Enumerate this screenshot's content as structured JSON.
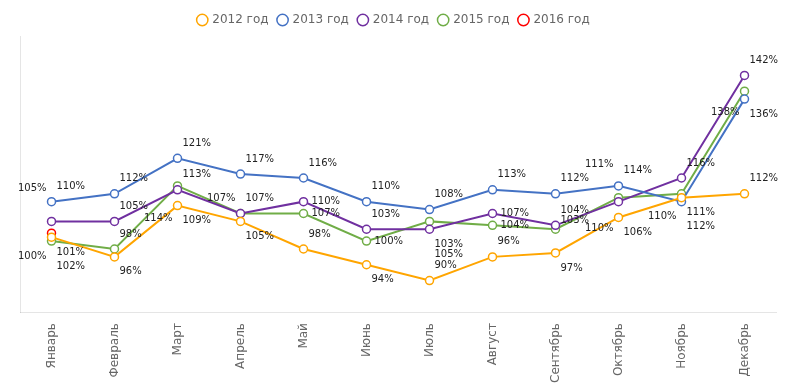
{
  "chart_data": {
    "type": "line",
    "categories": [
      "Январь",
      "Февраль",
      "Март",
      "Апрель",
      "Май",
      "Июнь",
      "Июль",
      "Август",
      "Сентябрь",
      "Октябрь",
      "Ноябрь",
      "Декабрь"
    ],
    "series": [
      {
        "name": "2012 год",
        "color": "#FFA500",
        "values": [
          101,
          96,
          109,
          105,
          98,
          94,
          90,
          96,
          97,
          106,
          111,
          112
        ],
        "value_labels": [
          "101%",
          "96%",
          "109%",
          "105%",
          "98%",
          "94%",
          "90%",
          "96%",
          "97%",
          "106%",
          "111%",
          "112%"
        ]
      },
      {
        "name": "2013 год",
        "color": "#4472C4",
        "values": [
          110,
          112,
          121,
          117,
          116,
          110,
          108,
          113,
          112,
          114,
          110,
          136
        ],
        "value_labels": [
          "110%",
          "112%",
          "121%",
          "117%",
          "116%",
          "110%",
          "108%",
          "113%",
          "112%",
          "114%",
          "110%",
          "136%"
        ]
      },
      {
        "name": "2014 год",
        "color": "#7030A0",
        "values": [
          105,
          105,
          113,
          107,
          110,
          103,
          103,
          107,
          104,
          110,
          116,
          142
        ],
        "value_labels": [
          "105%",
          "105%",
          "113%",
          "107%",
          "110%",
          "103%",
          "103%",
          "107%",
          "104%",
          "110%",
          "116%",
          "142%"
        ]
      },
      {
        "name": "2015 год",
        "color": "#70AD47",
        "values": [
          100,
          98,
          114,
          107,
          107,
          100,
          105,
          104,
          103,
          111,
          112,
          138
        ],
        "value_labels": [
          "100%",
          "98%",
          "114%",
          "107%",
          "107%",
          "100%",
          "105%",
          "104%",
          "103%",
          "111%",
          "112%",
          "138%"
        ]
      },
      {
        "name": "2016 год",
        "color": "#FF0000",
        "values": [
          102,
          null,
          null,
          null,
          null,
          null,
          null,
          null,
          null,
          null,
          null,
          null
        ],
        "value_labels": [
          "102%",
          null,
          null,
          null,
          null,
          null,
          null,
          null,
          null,
          null,
          null,
          null
        ]
      }
    ],
    "ylim": [
      82,
      152
    ],
    "grid": false,
    "legend": "top",
    "data_labels": true,
    "tick_labels": "x",
    "marker": "circle"
  }
}
